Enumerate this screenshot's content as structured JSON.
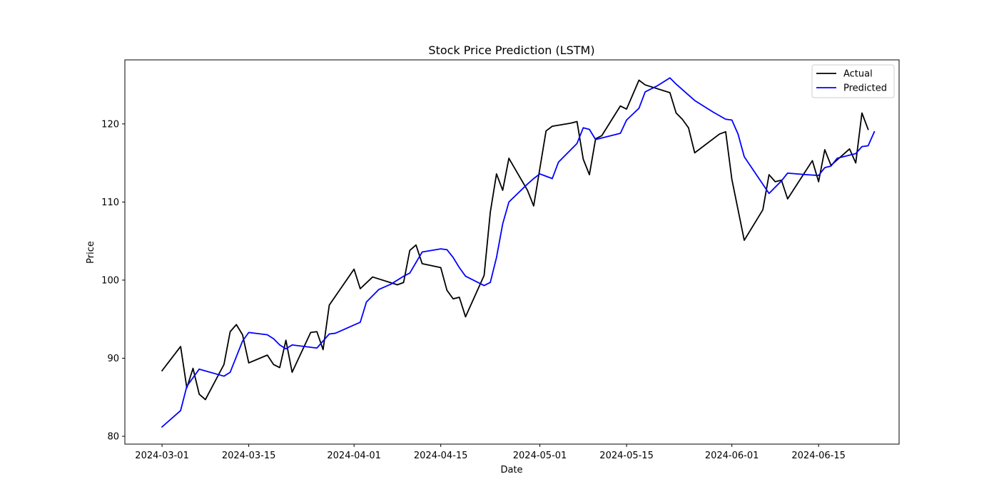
{
  "chart_data": {
    "type": "line",
    "title": "Stock Price Prediction (LSTM)",
    "xlabel": "Date",
    "ylabel": "Price",
    "x_axis_type": "date",
    "xlim": [
      "2024-02-24",
      "2024-06-28"
    ],
    "ylim": [
      79,
      128.2
    ],
    "x_ticks": [
      "2024-03-01",
      "2024-03-15",
      "2024-04-01",
      "2024-04-15",
      "2024-05-01",
      "2024-05-15",
      "2024-06-01",
      "2024-06-15"
    ],
    "y_ticks": [
      80,
      90,
      100,
      110,
      120
    ],
    "grid": false,
    "legend_position": "top-right",
    "series": [
      {
        "name": "Actual",
        "color": "#000000",
        "points": [
          [
            "2024-03-01",
            88.4
          ],
          [
            "2024-03-04",
            91.5
          ],
          [
            "2024-03-05",
            86.2
          ],
          [
            "2024-03-06",
            88.7
          ],
          [
            "2024-03-07",
            85.4
          ],
          [
            "2024-03-08",
            84.7
          ],
          [
            "2024-03-11",
            89.2
          ],
          [
            "2024-03-12",
            93.4
          ],
          [
            "2024-03-13",
            94.3
          ],
          [
            "2024-03-14",
            93.0
          ],
          [
            "2024-03-15",
            89.4
          ],
          [
            "2024-03-18",
            90.4
          ],
          [
            "2024-03-19",
            89.2
          ],
          [
            "2024-03-20",
            88.8
          ],
          [
            "2024-03-21",
            92.3
          ],
          [
            "2024-03-22",
            88.2
          ],
          [
            "2024-03-25",
            93.3
          ],
          [
            "2024-03-26",
            93.4
          ],
          [
            "2024-03-27",
            91.1
          ],
          [
            "2024-03-28",
            96.8
          ],
          [
            "2024-04-01",
            101.4
          ],
          [
            "2024-04-02",
            98.9
          ],
          [
            "2024-04-04",
            100.4
          ],
          [
            "2024-04-08",
            99.4
          ],
          [
            "2024-04-09",
            99.7
          ],
          [
            "2024-04-10",
            103.8
          ],
          [
            "2024-04-11",
            104.5
          ],
          [
            "2024-04-12",
            102.1
          ],
          [
            "2024-04-15",
            101.6
          ],
          [
            "2024-04-16",
            98.7
          ],
          [
            "2024-04-17",
            97.6
          ],
          [
            "2024-04-18",
            97.8
          ],
          [
            "2024-04-19",
            95.3
          ],
          [
            "2024-04-22",
            100.6
          ],
          [
            "2024-04-23",
            108.7
          ],
          [
            "2024-04-24",
            113.6
          ],
          [
            "2024-04-25",
            111.5
          ],
          [
            "2024-04-26",
            115.6
          ],
          [
            "2024-04-29",
            111.5
          ],
          [
            "2024-04-30",
            109.5
          ],
          [
            "2024-05-02",
            119.1
          ],
          [
            "2024-05-03",
            119.7
          ],
          [
            "2024-05-06",
            120.1
          ],
          [
            "2024-05-07",
            120.3
          ],
          [
            "2024-05-08",
            115.5
          ],
          [
            "2024-05-09",
            113.5
          ],
          [
            "2024-05-10",
            118.1
          ],
          [
            "2024-05-11",
            118.5
          ],
          [
            "2024-05-14",
            122.3
          ],
          [
            "2024-05-15",
            121.9
          ],
          [
            "2024-05-17",
            125.6
          ],
          [
            "2024-05-18",
            125.0
          ],
          [
            "2024-05-22",
            124.0
          ],
          [
            "2024-05-23",
            121.4
          ],
          [
            "2024-05-24",
            120.6
          ],
          [
            "2024-05-25",
            119.5
          ],
          [
            "2024-05-26",
            116.3
          ],
          [
            "2024-05-30",
            118.7
          ],
          [
            "2024-05-31",
            119.0
          ],
          [
            "2024-06-01",
            112.9
          ],
          [
            "2024-06-03",
            105.1
          ],
          [
            "2024-06-06",
            109.0
          ],
          [
            "2024-06-07",
            113.5
          ],
          [
            "2024-06-08",
            112.6
          ],
          [
            "2024-06-09",
            112.8
          ],
          [
            "2024-06-10",
            110.4
          ],
          [
            "2024-06-14",
            115.3
          ],
          [
            "2024-06-15",
            112.6
          ],
          [
            "2024-06-16",
            116.7
          ],
          [
            "2024-06-17",
            114.7
          ],
          [
            "2024-06-20",
            116.8
          ],
          [
            "2024-06-21",
            115.0
          ],
          [
            "2024-06-22",
            121.4
          ],
          [
            "2024-06-23",
            119.3
          ]
        ]
      },
      {
        "name": "Predicted",
        "color": "#0000ff",
        "points": [
          [
            "2024-03-01",
            81.2
          ],
          [
            "2024-03-04",
            83.3
          ],
          [
            "2024-03-05",
            86.4
          ],
          [
            "2024-03-07",
            88.6
          ],
          [
            "2024-03-11",
            87.7
          ],
          [
            "2024-03-12",
            88.2
          ],
          [
            "2024-03-13",
            90.2
          ],
          [
            "2024-03-14",
            92.2
          ],
          [
            "2024-03-15",
            93.3
          ],
          [
            "2024-03-18",
            93.0
          ],
          [
            "2024-03-19",
            92.5
          ],
          [
            "2024-03-20",
            91.7
          ],
          [
            "2024-03-21",
            91.2
          ],
          [
            "2024-03-22",
            91.7
          ],
          [
            "2024-03-26",
            91.3
          ],
          [
            "2024-03-28",
            93.1
          ],
          [
            "2024-03-29",
            93.2
          ],
          [
            "2024-04-02",
            94.6
          ],
          [
            "2024-04-03",
            97.2
          ],
          [
            "2024-04-05",
            98.8
          ],
          [
            "2024-04-07",
            99.5
          ],
          [
            "2024-04-08",
            100.0
          ],
          [
            "2024-04-09",
            100.5
          ],
          [
            "2024-04-10",
            100.9
          ],
          [
            "2024-04-12",
            103.6
          ],
          [
            "2024-04-15",
            104.0
          ],
          [
            "2024-04-16",
            103.9
          ],
          [
            "2024-04-17",
            102.9
          ],
          [
            "2024-04-18",
            101.6
          ],
          [
            "2024-04-19",
            100.5
          ],
          [
            "2024-04-22",
            99.3
          ],
          [
            "2024-04-23",
            99.7
          ],
          [
            "2024-04-24",
            102.9
          ],
          [
            "2024-04-25",
            107.2
          ],
          [
            "2024-04-26",
            110.0
          ],
          [
            "2024-04-29",
            112.3
          ],
          [
            "2024-04-30",
            113.0
          ],
          [
            "2024-05-01",
            113.6
          ],
          [
            "2024-05-03",
            113.0
          ],
          [
            "2024-05-04",
            115.1
          ],
          [
            "2024-05-07",
            117.5
          ],
          [
            "2024-05-08",
            119.5
          ],
          [
            "2024-05-09",
            119.3
          ],
          [
            "2024-05-10",
            118.0
          ],
          [
            "2024-05-14",
            118.8
          ],
          [
            "2024-05-15",
            120.5
          ],
          [
            "2024-05-17",
            122.0
          ],
          [
            "2024-05-18",
            124.1
          ],
          [
            "2024-05-20",
            124.9
          ],
          [
            "2024-05-22",
            125.9
          ],
          [
            "2024-05-23",
            125.1
          ],
          [
            "2024-05-26",
            123.0
          ],
          [
            "2024-05-29",
            121.5
          ],
          [
            "2024-05-31",
            120.6
          ],
          [
            "2024-06-01",
            120.5
          ],
          [
            "2024-06-02",
            118.7
          ],
          [
            "2024-06-03",
            115.8
          ],
          [
            "2024-06-07",
            111.1
          ],
          [
            "2024-06-09",
            112.7
          ],
          [
            "2024-06-10",
            113.7
          ],
          [
            "2024-06-13",
            113.5
          ],
          [
            "2024-06-15",
            113.4
          ],
          [
            "2024-06-16",
            114.4
          ],
          [
            "2024-06-17",
            114.6
          ],
          [
            "2024-06-18",
            115.6
          ],
          [
            "2024-06-21",
            116.2
          ],
          [
            "2024-06-22",
            117.1
          ],
          [
            "2024-06-23",
            117.2
          ],
          [
            "2024-06-24",
            119.0
          ]
        ]
      }
    ]
  }
}
